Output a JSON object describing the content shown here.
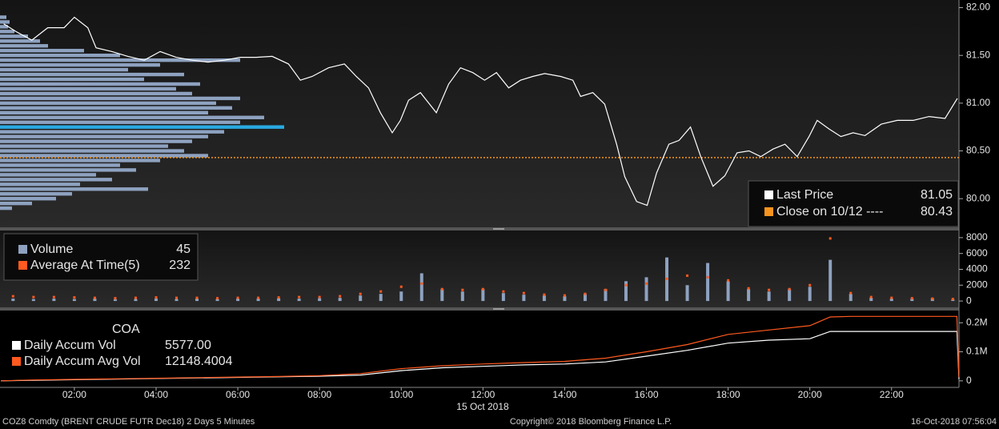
{
  "chart_data": [
    {
      "type": "line",
      "xlim": [
        0.18,
        23.65
      ],
      "x": [
        0.27,
        0.57,
        0.96,
        1.35,
        1.75,
        2.0,
        2.33,
        2.53,
        2.92,
        3.31,
        3.71,
        4.1,
        4.49,
        4.88,
        5.27,
        5.67,
        6.06,
        6.45,
        6.84,
        7.24,
        7.53,
        7.82,
        8.22,
        8.61,
        8.9,
        9.2,
        9.49,
        9.78,
        9.98,
        10.18,
        10.47,
        10.86,
        11.16,
        11.45,
        11.75,
        12.04,
        12.33,
        12.63,
        12.92,
        13.22,
        13.51,
        13.9,
        14.2,
        14.39,
        14.69,
        14.98,
        15.27,
        15.47,
        15.76,
        16.02,
        16.25,
        16.55,
        16.8,
        17.08,
        17.33,
        17.63,
        17.92,
        18.22,
        18.51,
        18.8,
        19.1,
        19.39,
        19.69,
        19.98,
        20.18,
        20.47,
        20.76,
        21.06,
        21.35,
        21.75,
        22.14,
        22.53,
        22.92,
        23.31,
        23.61
      ],
      "series": [
        {
          "name": "Last Price",
          "color": "#ffffff",
          "last_value": 81.05,
          "values": [
            81.83,
            81.75,
            81.66,
            81.79,
            81.79,
            81.9,
            81.79,
            81.58,
            81.54,
            81.49,
            81.45,
            81.54,
            81.48,
            81.45,
            81.43,
            81.45,
            81.48,
            81.48,
            81.49,
            81.41,
            81.24,
            81.28,
            81.37,
            81.41,
            81.28,
            81.16,
            80.9,
            80.69,
            80.82,
            81.03,
            81.11,
            80.9,
            81.2,
            81.37,
            81.32,
            81.24,
            81.32,
            81.16,
            81.24,
            81.28,
            81.31,
            81.28,
            81.24,
            81.07,
            81.11,
            80.99,
            80.57,
            80.23,
            79.97,
            79.93,
            80.27,
            80.57,
            80.61,
            80.75,
            80.44,
            80.13,
            80.24,
            80.48,
            80.5,
            80.44,
            80.52,
            80.57,
            80.44,
            80.65,
            80.82,
            80.73,
            80.65,
            80.69,
            80.66,
            80.78,
            80.82,
            80.82,
            80.86,
            80.84,
            81.05
          ]
        }
      ],
      "reference_lines": [
        {
          "name": "Close on 10/12 ----",
          "color": "#f7941d",
          "value": 80.43
        }
      ],
      "volume_profile": {
        "color": "#8ea2c0",
        "highlight_color": "#29a9e1",
        "prices": [
          81.9,
          81.85,
          81.8,
          81.75,
          81.7,
          81.65,
          81.6,
          81.55,
          81.5,
          81.45,
          81.4,
          81.35,
          81.3,
          81.25,
          81.2,
          81.15,
          81.1,
          81.05,
          81.0,
          80.95,
          80.9,
          80.85,
          80.8,
          80.75,
          80.7,
          80.65,
          80.6,
          80.55,
          80.5,
          80.45,
          80.4,
          80.35,
          80.3,
          80.25,
          80.2,
          80.15,
          80.1,
          80.05,
          80.0,
          79.95,
          79.9
        ],
        "values": [
          8,
          12,
          10,
          18,
          35,
          50,
          60,
          105,
          150,
          300,
          200,
          160,
          230,
          180,
          250,
          220,
          240,
          300,
          270,
          290,
          260,
          330,
          300,
          355,
          280,
          260,
          240,
          210,
          230,
          260,
          200,
          150,
          170,
          120,
          140,
          100,
          185,
          90,
          70,
          40,
          15
        ]
      },
      "ylim": [
        79.7,
        82.08
      ],
      "yticks": [
        {
          "value": 80,
          "label": "80.00"
        },
        {
          "value": 80.5,
          "label": "80.50"
        },
        {
          "value": 81,
          "label": "81.00"
        },
        {
          "value": 81.5,
          "label": "81.50"
        },
        {
          "value": 82,
          "label": "82.00"
        }
      ]
    },
    {
      "type": "bar",
      "xlim": [
        0.18,
        23.65
      ],
      "x": [
        0.5,
        1,
        1.5,
        2,
        2.5,
        3,
        3.5,
        4,
        4.5,
        5,
        5.5,
        6,
        6.5,
        7,
        7.5,
        8,
        8.5,
        9,
        9.5,
        10,
        10.5,
        11,
        11.5,
        12,
        12.5,
        13,
        13.5,
        14,
        14.5,
        15,
        15.5,
        16,
        16.5,
        17,
        17.5,
        18,
        18.5,
        19,
        19.5,
        20,
        20.5,
        21,
        21.5,
        22,
        22.5,
        23,
        23.5
      ],
      "series": [
        {
          "name": "Volume",
          "color": "#8ea2c0",
          "last_value": 45,
          "values": [
            300,
            250,
            300,
            250,
            300,
            200,
            250,
            300,
            250,
            300,
            250,
            300,
            300,
            350,
            300,
            350,
            400,
            700,
            900,
            1200,
            3500,
            1500,
            1200,
            1500,
            1000,
            800,
            700,
            600,
            900,
            1500,
            2500,
            3000,
            5500,
            2000,
            4800,
            2500,
            1500,
            1200,
            1500,
            1800,
            5200,
            900,
            400,
            300,
            300,
            350,
            200
          ]
        },
        {
          "name": "Average At Time(5)",
          "color": "#ff5a1f",
          "style": "dots",
          "last_value": 232,
          "values": [
            600,
            500,
            500,
            450,
            400,
            350,
            400,
            450,
            400,
            400,
            350,
            400,
            400,
            450,
            500,
            500,
            600,
            900,
            1200,
            1800,
            2200,
            1500,
            1400,
            1500,
            1200,
            1000,
            800,
            700,
            900,
            1400,
            2000,
            2200,
            2800,
            3200,
            3000,
            2600,
            1600,
            1400,
            1500,
            2000,
            7900,
            1000,
            500,
            400,
            350,
            300,
            250
          ]
        }
      ],
      "ylim": [
        -800,
        8900
      ],
      "yticks": [
        0,
        2000,
        4000,
        6000,
        8000
      ]
    },
    {
      "type": "line",
      "title": "COA",
      "xlim": [
        0.18,
        23.65
      ],
      "x": [
        0.2,
        1,
        2,
        3,
        4,
        5,
        6,
        7,
        8,
        9,
        10,
        11,
        12,
        13,
        14,
        15,
        16,
        17,
        18,
        19,
        20,
        20.5,
        21,
        22,
        23,
        23.6,
        23.65
      ],
      "series": [
        {
          "name": "Daily Accum Vol",
          "color": "#ffffff",
          "last_value": 5577,
          "last_value_label": "5577.00",
          "values": [
            0,
            2000,
            4000,
            6000,
            8000,
            10000,
            12000,
            14000,
            16000,
            20000,
            35000,
            45000,
            50000,
            55000,
            58000,
            65000,
            85000,
            105000,
            130000,
            140000,
            145000,
            170000,
            170000,
            170000,
            170000,
            170000,
            5577
          ]
        },
        {
          "name": "Daily Accum Avg Vol",
          "color": "#ff5a1f",
          "last_value": 12148.4004,
          "values": [
            0,
            3000,
            5000,
            7000,
            9000,
            11000,
            13000,
            15000,
            18000,
            25000,
            42000,
            52000,
            58000,
            63000,
            67000,
            78000,
            100000,
            125000,
            160000,
            175000,
            190000,
            220000,
            222000,
            222000,
            222000,
            222000,
            12148.4004
          ]
        }
      ],
      "ylim": [
        -22500,
        242000
      ],
      "yticks": [
        0,
        {
          "value": 100000,
          "label": "0.1M"
        },
        {
          "value": 200000,
          "label": "0.2M"
        }
      ],
      "xticks": [
        {
          "value": 2,
          "label": "02:00"
        },
        {
          "value": 4,
          "label": "04:00"
        },
        {
          "value": 6,
          "label": "06:00"
        },
        {
          "value": 8,
          "label": "08:00"
        },
        {
          "value": 10,
          "label": "10:00"
        },
        {
          "value": 12,
          "label": "12:00"
        },
        {
          "value": 14,
          "label": "14:00"
        },
        {
          "value": 16,
          "label": "16:00"
        },
        {
          "value": 18,
          "label": "18:00"
        },
        {
          "value": 20,
          "label": "20:00"
        },
        {
          "value": 22,
          "label": "22:00"
        }
      ],
      "xlabel": "15 Oct 2018"
    }
  ],
  "footer": {
    "left": "COZ8 Comdty (BRENT CRUDE FUTR  Dec18) 2 Days 5 Minutes",
    "center": "Copyright© 2018 Bloomberg Finance L.P.",
    "right": "16-Oct-2018 07:56:04"
  }
}
